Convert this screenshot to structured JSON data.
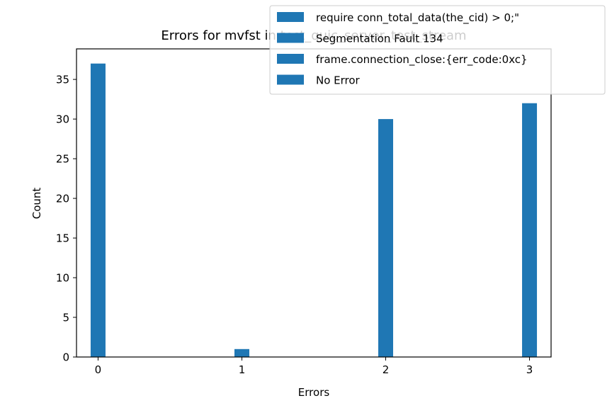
{
  "chart_data": {
    "type": "bar",
    "title": "Errors for mvfst in test_quic_server_test_stream",
    "xlabel": "Errors",
    "ylabel": "Count",
    "categories": [
      "0",
      "1",
      "2",
      "3"
    ],
    "values": [
      37,
      1,
      30,
      32
    ],
    "xlim": [
      -0.15,
      3.15
    ],
    "ylim": [
      0,
      38.85
    ],
    "yticks": [
      0,
      5,
      10,
      15,
      20,
      25,
      30,
      35
    ],
    "xticks": [
      0,
      1,
      2,
      3
    ],
    "grid": false,
    "legend_placement": "top-right",
    "legend": [
      "require conn_total_data(the_cid) > 0;\"",
      "Segmentation Fault 134",
      "frame.connection_close:{err_code:0xc}",
      "No Error"
    ],
    "bar_color": "#1f77b4"
  }
}
